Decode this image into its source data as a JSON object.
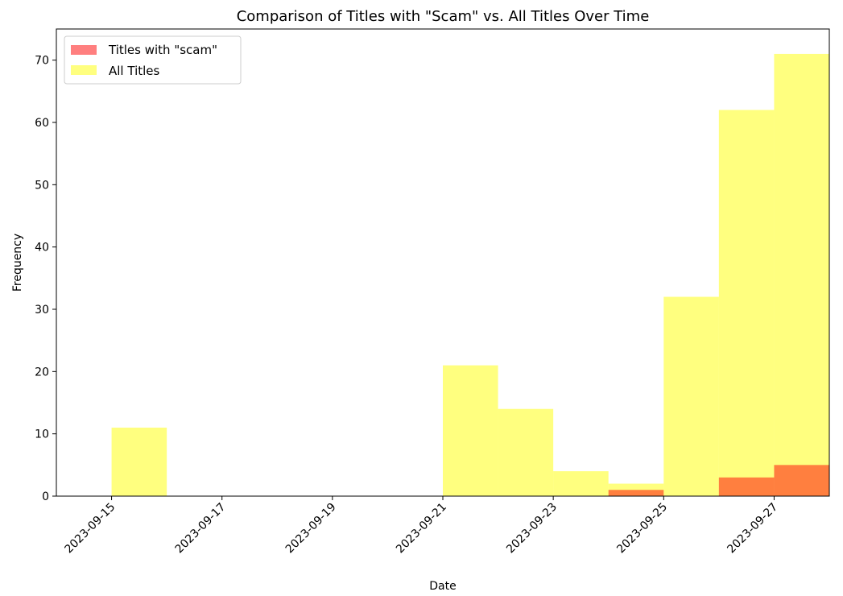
{
  "chart_data": {
    "type": "bar",
    "title": "Comparison of Titles with \"Scam\" vs. All Titles Over Time",
    "xlabel": "Date",
    "ylabel": "Frequency",
    "x_axis_type": "date",
    "xlim": [
      "2023-09-14",
      "2023-09-28"
    ],
    "ylim": [
      0,
      75
    ],
    "x_ticks": [
      "2023-09-15",
      "2023-09-17",
      "2023-09-19",
      "2023-09-21",
      "2023-09-23",
      "2023-09-25",
      "2023-09-27"
    ],
    "y_ticks": [
      0,
      10,
      20,
      30,
      40,
      50,
      60,
      70
    ],
    "grid": false,
    "legend_position": "upper-left",
    "bins": [
      [
        "2023-09-15",
        "2023-09-16"
      ],
      [
        "2023-09-16",
        "2023-09-17"
      ],
      [
        "2023-09-17",
        "2023-09-18"
      ],
      [
        "2023-09-18",
        "2023-09-19"
      ],
      [
        "2023-09-19",
        "2023-09-20"
      ],
      [
        "2023-09-20",
        "2023-09-21"
      ],
      [
        "2023-09-21",
        "2023-09-22"
      ],
      [
        "2023-09-22",
        "2023-09-23"
      ],
      [
        "2023-09-23",
        "2023-09-24"
      ],
      [
        "2023-09-24",
        "2023-09-25"
      ],
      [
        "2023-09-25",
        "2023-09-26"
      ],
      [
        "2023-09-26",
        "2023-09-27"
      ],
      [
        "2023-09-27",
        "2023-09-28"
      ]
    ],
    "series": [
      {
        "name": "All Titles",
        "color": "#ffff00",
        "opacity": 0.5,
        "values": [
          11,
          0,
          0,
          0,
          0,
          0,
          21,
          14,
          4,
          2,
          32,
          62,
          71
        ]
      },
      {
        "name": "Titles with \"scam\"",
        "color": "#ff0000",
        "opacity": 0.5,
        "values": [
          0,
          0,
          0,
          0,
          0,
          0,
          0,
          0,
          0,
          1,
          0,
          3,
          5
        ]
      }
    ],
    "legend": [
      "Titles with \"scam\"",
      "All Titles"
    ]
  }
}
